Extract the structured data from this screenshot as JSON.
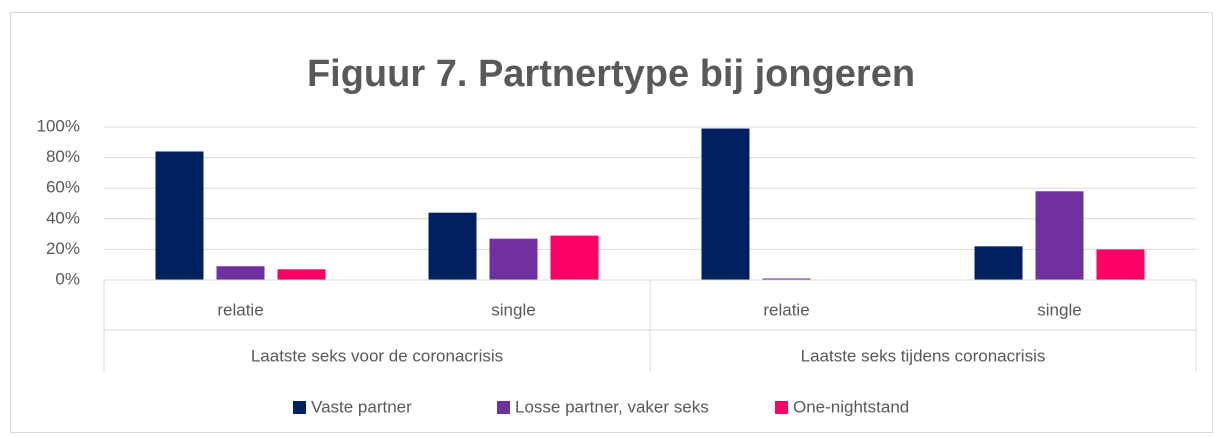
{
  "chart_data": {
    "type": "bar",
    "title": "Figuur 7. Partnertype bij jongeren",
    "categories": [
      "relatie",
      "single",
      "relatie",
      "single"
    ],
    "category_groups": [
      "Laatste seks voor de coronacrisis",
      "Laatste seks tijdens coronacrisis"
    ],
    "series": [
      {
        "name": "Vaste partner",
        "color": "#002060",
        "values": [
          84,
          44,
          99,
          22
        ]
      },
      {
        "name": "Losse partner, vaker seks",
        "color": "#7030a0",
        "values": [
          9,
          27,
          1,
          58
        ]
      },
      {
        "name": "One-nightstand",
        "color": "#ff0066",
        "values": [
          7,
          29,
          0,
          20
        ]
      }
    ],
    "ylim": [
      0,
      100
    ],
    "yticks": [
      {
        "value": 0,
        "label": "0%"
      },
      {
        "value": 20,
        "label": "20%"
      },
      {
        "value": 40,
        "label": "40%"
      },
      {
        "value": 60,
        "label": "60%"
      },
      {
        "value": 80,
        "label": "80%"
      },
      {
        "value": 100,
        "label": "100%"
      }
    ],
    "grid": true,
    "legend": "bottom"
  }
}
